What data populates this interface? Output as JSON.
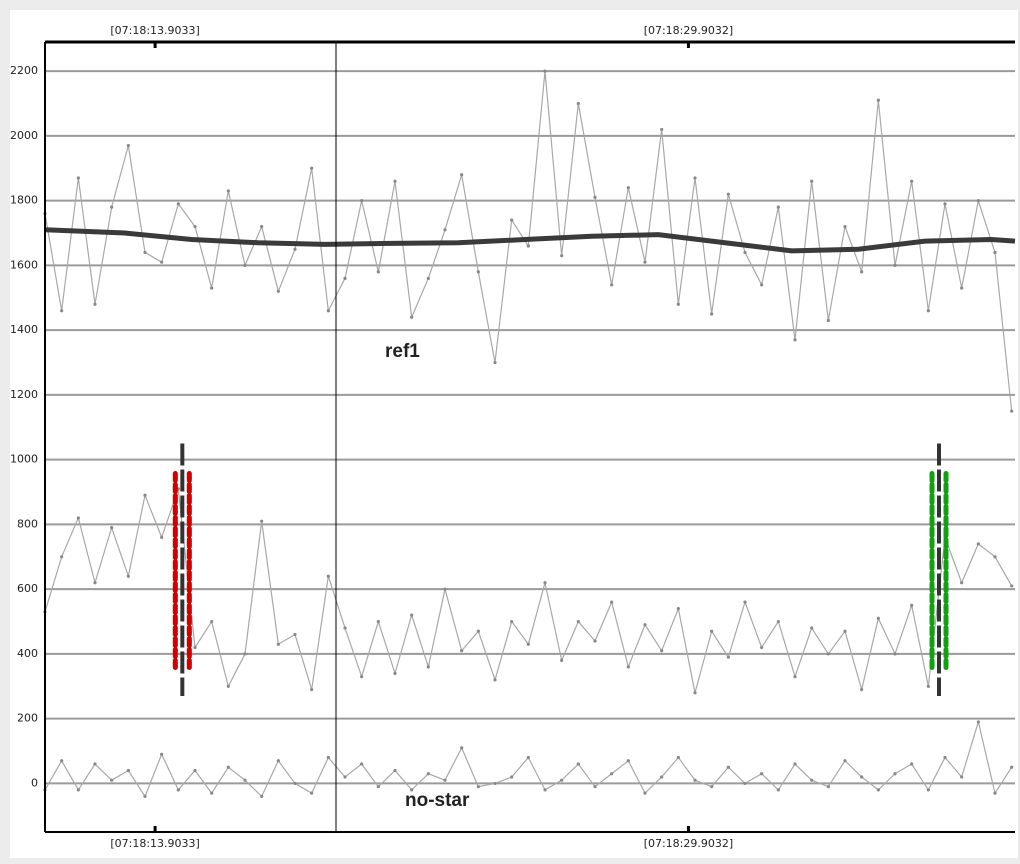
{
  "chart_data": {
    "type": "line",
    "x": [
      10.6,
      11.1,
      11.6,
      12.1,
      12.6,
      13.1,
      13.6,
      14.1,
      14.6,
      15.1,
      15.6,
      16.1,
      16.6,
      17.1,
      17.6,
      18.1,
      18.6,
      19.1,
      19.6,
      20.1,
      20.6,
      21.1,
      21.6,
      22.1,
      22.6,
      23.1,
      23.6,
      24.1,
      24.6,
      25.1,
      25.6,
      26.1,
      26.6,
      27.1,
      27.6,
      28.1,
      28.6,
      29.1,
      29.6,
      30.1,
      30.6,
      31.1,
      31.6,
      32.1,
      32.6,
      33.1,
      33.6,
      34.1,
      34.6,
      35.1,
      35.6,
      36.1,
      36.6,
      37.1,
      37.6,
      38.1,
      38.6,
      39.1,
      39.6
    ],
    "series": [
      {
        "color": "#a8a8a8",
        "values": [
          1760,
          1460,
          1870,
          1480,
          1780,
          1970,
          1640,
          1610,
          1790,
          1720,
          1530,
          1830,
          1600,
          1720,
          1520,
          1650,
          1900,
          1460,
          1560,
          1800,
          1580,
          1860,
          1440,
          1560,
          1710,
          1880,
          1580,
          1300,
          1740,
          1660,
          2200,
          1630,
          2100,
          1810,
          1540,
          1840,
          1610,
          2020,
          1480,
          1870,
          1450,
          1820,
          1640,
          1540,
          1780,
          1370,
          1860,
          1430,
          1720,
          1580,
          2110,
          1600,
          1860,
          1460,
          1790,
          1530,
          1800,
          1640,
          1150
        ]
      },
      {
        "color": "#a8a8a8",
        "values": [
          530,
          700,
          820,
          620,
          790,
          640,
          890,
          760,
          910,
          420,
          500,
          300,
          400,
          810,
          430,
          460,
          290,
          640,
          480,
          330,
          500,
          340,
          520,
          360,
          600,
          410,
          470,
          320,
          500,
          430,
          620,
          380,
          500,
          440,
          560,
          360,
          490,
          410,
          540,
          280,
          470,
          390,
          560,
          420,
          500,
          330,
          480,
          400,
          470,
          290,
          510,
          400,
          550,
          300,
          760,
          620,
          740,
          700,
          610
        ]
      },
      {
        "color": "#a8a8a8",
        "values": [
          -20,
          70,
          -20,
          60,
          10,
          40,
          -40,
          90,
          -20,
          40,
          -30,
          50,
          10,
          -40,
          70,
          0,
          -30,
          80,
          20,
          60,
          -10,
          40,
          -20,
          30,
          10,
          110,
          -10,
          0,
          20,
          80,
          -20,
          10,
          60,
          -10,
          30,
          70,
          -30,
          20,
          80,
          10,
          -10,
          50,
          0,
          30,
          -20,
          60,
          10,
          -10,
          70,
          20,
          -20,
          30,
          60,
          -20,
          80,
          20,
          190,
          -30,
          50
        ]
      },
      {
        "color": "#3a3a3a",
        "x": [
          10.6,
          13,
          15,
          17,
          19,
          21,
          23,
          25,
          27,
          29,
          31,
          33,
          35,
          37,
          39,
          39.7
        ],
        "values": [
          1710,
          1700,
          1680,
          1670,
          1665,
          1668,
          1670,
          1680,
          1690,
          1695,
          1670,
          1645,
          1650,
          1675,
          1680,
          1675
        ]
      }
    ],
    "annotations": [
      "ref1",
      "no-star"
    ],
    "cursor_x": 19.33,
    "markers": [
      {
        "x": 14.72,
        "color": "#d00000",
        "range": [
          270,
          1050
        ]
      },
      {
        "x": 37.42,
        "color": "#10a010",
        "range": [
          270,
          1050
        ]
      }
    ],
    "xlim": [
      10.6,
      39.7
    ],
    "xticks": [
      {
        "value": 13.9033,
        "label": "[07:18:13.9033]"
      },
      {
        "value": 29.9032,
        "label": "[07:18:29.9032]"
      }
    ],
    "ylim": [
      -150,
      2290
    ],
    "yticks": [
      0,
      200,
      400,
      600,
      800,
      1000,
      1200,
      1400,
      1600,
      1800,
      2000,
      2200
    ],
    "grid": true
  }
}
